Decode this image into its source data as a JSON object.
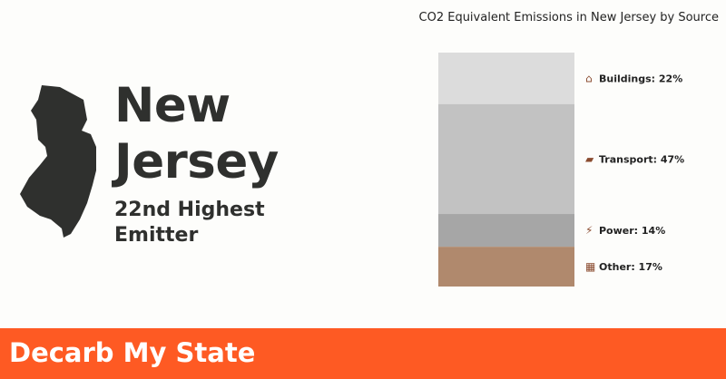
{
  "state": {
    "name_line1": "New",
    "name_line2": "Jersey",
    "rank_line1": "22nd Highest",
    "rank_line2": "Emitter"
  },
  "footer": {
    "brand": "Decarb My State"
  },
  "chart_data": {
    "type": "bar",
    "title": "CO2 Equivalent Emissions in New Jersey by Source",
    "stacked": true,
    "series": [
      {
        "name": "Buildings",
        "value": 22,
        "label": "Buildings: 22%",
        "icon": "house-icon",
        "color": "#dcdcdc"
      },
      {
        "name": "Transport",
        "value": 47,
        "label": "Transport: 47%",
        "icon": "car-icon",
        "color": "#c2c2c2"
      },
      {
        "name": "Power",
        "value": 14,
        "label": "Power: 14%",
        "icon": "plug-icon",
        "color": "#a6a6a6"
      },
      {
        "name": "Other",
        "value": 17,
        "label": "Other: 17%",
        "icon": "factory-icon",
        "color": "#b0896d"
      }
    ]
  }
}
